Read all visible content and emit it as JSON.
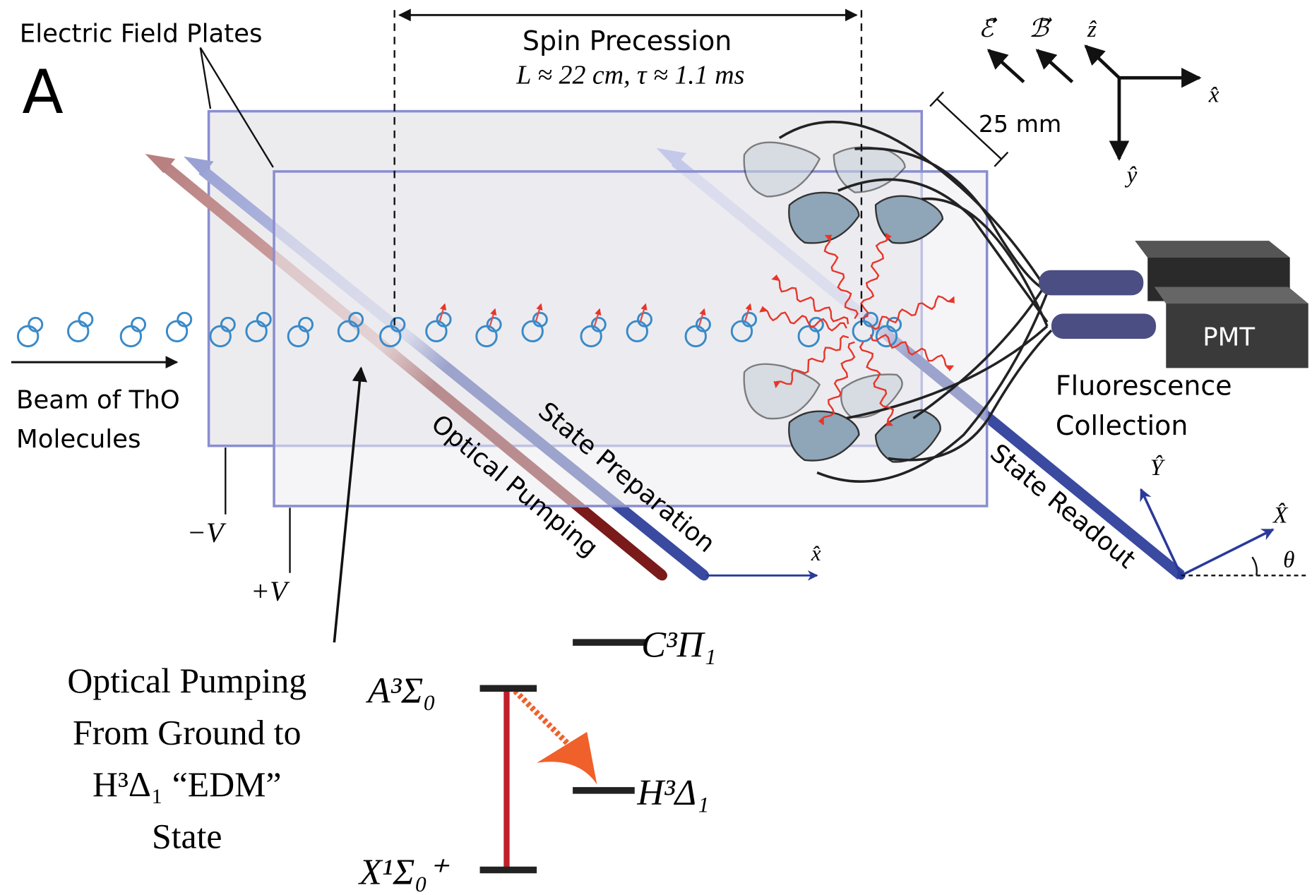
{
  "panel_label": "A",
  "labels": {
    "electric_field_plates": "Electric Field Plates",
    "spin_precession": "Spin Precession",
    "precession_params": "L ≈ 22 cm,  τ ≈ 1.1 ms",
    "plate_gap": "25 mm",
    "pmt": "PMT",
    "fluorescence_collection": [
      "Fluorescence",
      "Collection"
    ],
    "beam": [
      "Beam of ThO",
      "Molecules"
    ],
    "state_preparation": "State Preparation",
    "optical_pumping": "Optical Pumping",
    "state_readout": "State Readout",
    "minus_v": "−V",
    "plus_v": "+V",
    "pumping_note": [
      "Optical Pumping",
      "From Ground to",
      "H³Δ₁ “EDM”",
      "State"
    ]
  },
  "axes": {
    "field_e": "ℰ⃗",
    "field_b": "ℬ⃗",
    "lab_z": "ẑ",
    "lab_x": "x̂",
    "lab_y": "ŷ",
    "beam_x": "x̂",
    "readout_Y": "Ŷ",
    "readout_X": "X̂",
    "theta": "θ"
  },
  "levels": [
    {
      "label": "C³Π₁"
    },
    {
      "label": "A³Σ₀"
    },
    {
      "label": "H³Δ₁"
    },
    {
      "label": "X¹Σ₀⁺"
    }
  ]
}
